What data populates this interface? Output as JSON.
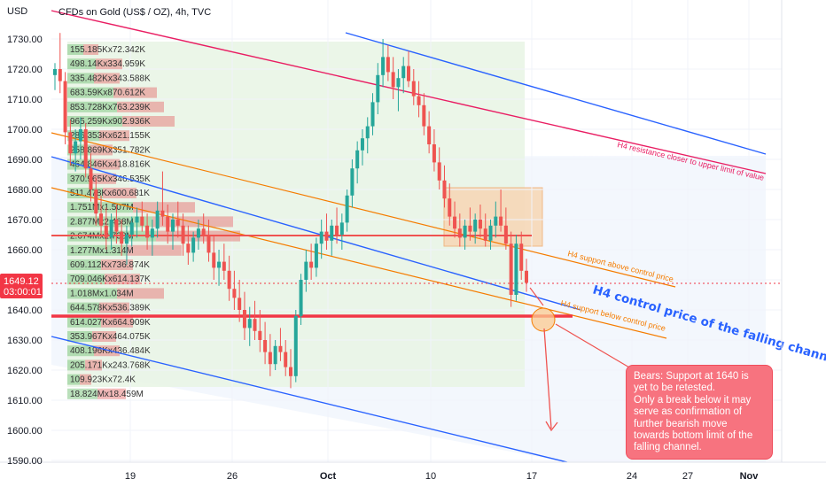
{
  "header": {
    "symbol_title": "CFDs on Gold (US$ / OZ), 4h, TVC",
    "currency": "USD"
  },
  "price_tag": {
    "price": "1649.12",
    "countdown": "03:00:01",
    "value": 1649.12,
    "color": "#f23645"
  },
  "annotations": {
    "resistance_label": "H4 resistance closer to upper limit of value",
    "support_above_label": "H4 support above control price",
    "support_below_label": "H4 support below control price",
    "control_label": "H4 control price of the falling channel",
    "callout_lines": [
      "Bears: Support at 1640 is",
      "yet to be retested.",
      "Only a break below it may",
      "serve as confirmation of",
      "further bearish move",
      "towards bottom limit of the",
      "falling channel."
    ]
  },
  "colors": {
    "up": "#26a69a",
    "down": "#ef5350",
    "channel_blue": "#2962ff",
    "resistance": "#e91e63",
    "support": "#f57c00",
    "red_line": "#f23645",
    "callout_bg": "#f7737f"
  },
  "chart_data": {
    "type": "candlestick",
    "title": "CFDs on Gold (US$ / OZ), 4h, TVC",
    "y_axis": {
      "unit": "USD",
      "range": [
        1588,
        1736
      ],
      "ticks": [
        "1590.00",
        "1600.00",
        "1610.00",
        "1620.00",
        "1630.00",
        "1640.00",
        "1650.00",
        "1660.00",
        "1670.00",
        "1680.00",
        "1690.00",
        "1700.00",
        "1710.00",
        "1720.00",
        "1730.00"
      ]
    },
    "x_axis": {
      "ticks": [
        "19",
        "26",
        "Oct",
        "10",
        "17",
        "24",
        "27",
        "Nov"
      ]
    },
    "horizontal_levels": [
      {
        "name": "support",
        "value": 1638
      },
      {
        "name": "mid-level",
        "value": 1665
      }
    ],
    "volume_profile_rows": [
      "155.185Kx72.342K",
      "498.14Kx334.959K",
      "335.482Kx343.588K",
      "683.59Kx870.612K",
      "853.728Kx763.239K",
      "965.259Kx902.936K",
      "286.353Kx621.155K",
      "258.869Kx351.782K",
      "464.846Kx418.816K",
      "370.965Kx346.535K",
      "511.478Kx600.681K",
      "1.751Mx1.507M",
      "2.877Mx2.468M",
      "2.674Mx2.738M",
      "1.277Mx1.314M",
      "609.112Kx736.874K",
      "709.046Kx614.137K",
      "1.018Mx1.034M",
      "644.578Kx536.389K",
      "614.027Kx664.909K",
      "353.967Kx464.075K",
      "408.196Kx436.484K",
      "205.171Kx243.768K",
      "109.923Kx72.4K",
      "18.824Mx18.459M"
    ],
    "candles": [
      [
        1718,
        1722,
        1713,
        1720
      ],
      [
        1720,
        1732,
        1712,
        1716
      ],
      [
        1716,
        1719,
        1695,
        1699
      ],
      [
        1699,
        1703,
        1688,
        1692
      ],
      [
        1692,
        1700,
        1686,
        1696
      ],
      [
        1696,
        1704,
        1690,
        1700
      ],
      [
        1700,
        1702,
        1684,
        1687
      ],
      [
        1687,
        1692,
        1676,
        1680
      ],
      [
        1680,
        1684,
        1668,
        1672
      ],
      [
        1672,
        1678,
        1664,
        1668
      ],
      [
        1668,
        1674,
        1660,
        1664
      ],
      [
        1664,
        1672,
        1660,
        1670
      ],
      [
        1670,
        1675,
        1662,
        1666
      ],
      [
        1666,
        1670,
        1658,
        1662
      ],
      [
        1662,
        1668,
        1655,
        1665
      ],
      [
        1665,
        1671,
        1661,
        1669
      ],
      [
        1669,
        1674,
        1664,
        1671
      ],
      [
        1671,
        1676,
        1666,
        1668
      ],
      [
        1668,
        1672,
        1660,
        1664
      ],
      [
        1664,
        1670,
        1658,
        1667
      ],
      [
        1667,
        1676,
        1664,
        1673
      ],
      [
        1673,
        1686,
        1668,
        1671
      ],
      [
        1671,
        1675,
        1662,
        1666
      ],
      [
        1666,
        1672,
        1660,
        1670
      ],
      [
        1670,
        1676,
        1664,
        1668
      ],
      [
        1668,
        1672,
        1658,
        1662
      ],
      [
        1662,
        1668,
        1655,
        1659
      ],
      [
        1659,
        1666,
        1656,
        1664
      ],
      [
        1664,
        1670,
        1660,
        1667
      ],
      [
        1667,
        1672,
        1662,
        1665
      ],
      [
        1665,
        1670,
        1656,
        1659
      ],
      [
        1659,
        1665,
        1650,
        1654
      ],
      [
        1654,
        1660,
        1648,
        1656
      ],
      [
        1656,
        1662,
        1650,
        1653
      ],
      [
        1653,
        1658,
        1643,
        1647
      ],
      [
        1647,
        1653,
        1640,
        1644
      ],
      [
        1644,
        1650,
        1636,
        1640
      ],
      [
        1640,
        1646,
        1630,
        1634
      ],
      [
        1634,
        1641,
        1628,
        1637
      ],
      [
        1637,
        1643,
        1630,
        1633
      ],
      [
        1633,
        1640,
        1626,
        1630
      ],
      [
        1630,
        1636,
        1622,
        1626
      ],
      [
        1626,
        1632,
        1618,
        1622
      ],
      [
        1622,
        1630,
        1620,
        1628
      ],
      [
        1628,
        1634,
        1623,
        1626
      ],
      [
        1626,
        1630,
        1618,
        1621
      ],
      [
        1621,
        1627,
        1614,
        1618
      ],
      [
        1618,
        1640,
        1616,
        1638
      ],
      [
        1638,
        1652,
        1635,
        1650
      ],
      [
        1650,
        1660,
        1646,
        1656
      ],
      [
        1656,
        1662,
        1650,
        1654
      ],
      [
        1654,
        1664,
        1651,
        1662
      ],
      [
        1662,
        1670,
        1657,
        1666
      ],
      [
        1666,
        1672,
        1660,
        1663
      ],
      [
        1663,
        1670,
        1658,
        1668
      ],
      [
        1668,
        1674,
        1662,
        1665
      ],
      [
        1665,
        1672,
        1660,
        1669
      ],
      [
        1669,
        1680,
        1666,
        1678
      ],
      [
        1678,
        1690,
        1674,
        1687
      ],
      [
        1687,
        1696,
        1682,
        1693
      ],
      [
        1693,
        1700,
        1688,
        1697
      ],
      [
        1697,
        1704,
        1692,
        1701
      ],
      [
        1701,
        1712,
        1698,
        1709
      ],
      [
        1709,
        1722,
        1705,
        1718
      ],
      [
        1718,
        1730,
        1714,
        1724
      ],
      [
        1724,
        1728,
        1716,
        1719
      ],
      [
        1719,
        1724,
        1710,
        1714
      ],
      [
        1714,
        1720,
        1706,
        1717
      ],
      [
        1717,
        1724,
        1712,
        1721
      ],
      [
        1721,
        1726,
        1714,
        1716
      ],
      [
        1716,
        1720,
        1708,
        1711
      ],
      [
        1711,
        1716,
        1704,
        1708
      ],
      [
        1708,
        1712,
        1698,
        1701
      ],
      [
        1701,
        1706,
        1692,
        1695
      ],
      [
        1695,
        1700,
        1686,
        1689
      ],
      [
        1689,
        1694,
        1680,
        1683
      ],
      [
        1683,
        1688,
        1674,
        1677
      ],
      [
        1677,
        1682,
        1668,
        1671
      ],
      [
        1671,
        1676,
        1664,
        1667
      ],
      [
        1667,
        1672,
        1661,
        1664
      ],
      [
        1664,
        1670,
        1660,
        1668
      ],
      [
        1668,
        1674,
        1663,
        1666
      ],
      [
        1666,
        1672,
        1662,
        1670
      ],
      [
        1670,
        1675,
        1664,
        1667
      ],
      [
        1667,
        1672,
        1661,
        1663
      ],
      [
        1663,
        1670,
        1660,
        1668
      ],
      [
        1668,
        1676,
        1664,
        1671
      ],
      [
        1671,
        1680,
        1666,
        1668
      ],
      [
        1668,
        1674,
        1660,
        1662
      ],
      [
        1662,
        1666,
        1641,
        1645
      ],
      [
        1645,
        1665,
        1643,
        1662
      ],
      [
        1662,
        1666,
        1650,
        1653
      ],
      [
        1653,
        1657,
        1646,
        1649
      ]
    ]
  }
}
